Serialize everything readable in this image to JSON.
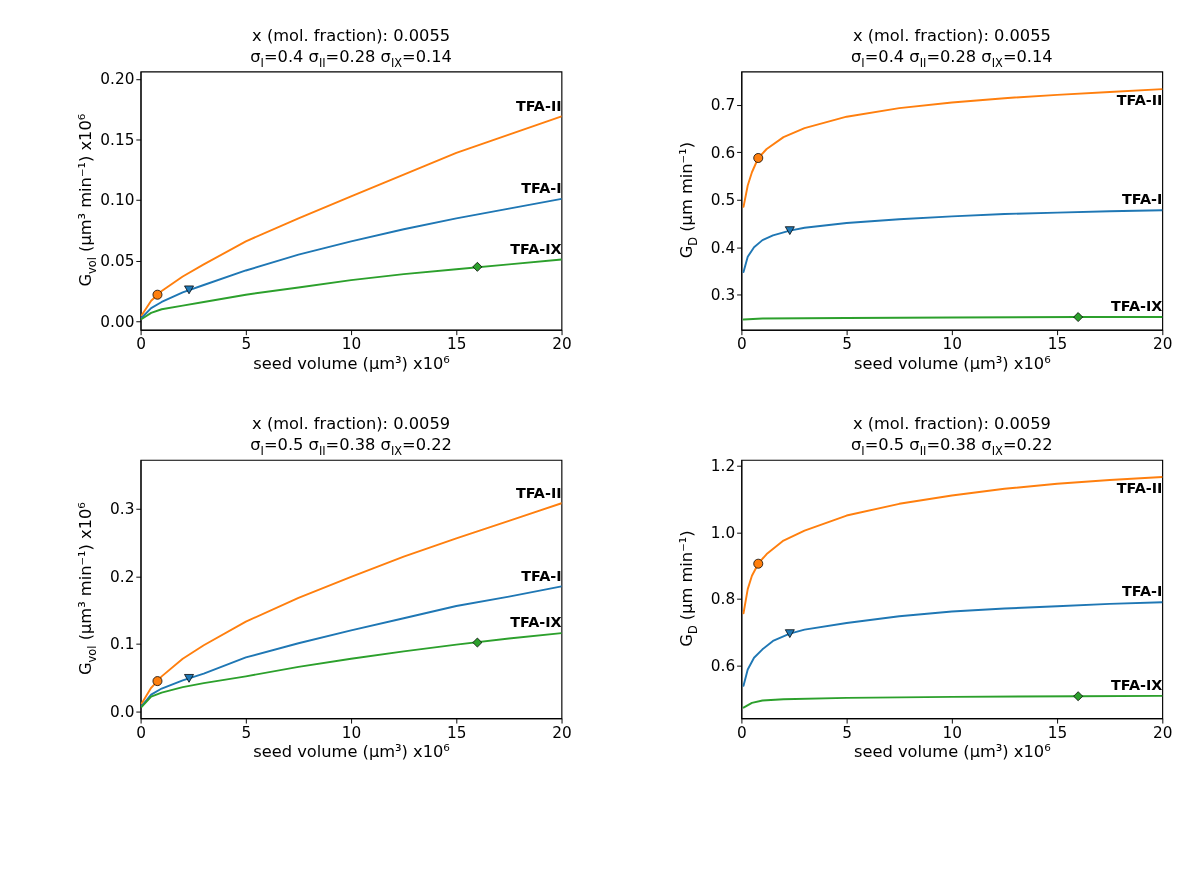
{
  "chart_data": [
    {
      "type": "line",
      "title": "x (mol. fraction): 0.0055",
      "subtitle": "σ$_{I}$=0.4 σ$_{II}$=0.28 σ$_{IX}$=0.14",
      "xlabel": "seed volume (µm³) x10⁶",
      "ylabel": "G$_{vol}$ (µm³ min⁻¹) x10⁶",
      "xlim": [
        0,
        20
      ],
      "xticks": [
        0,
        5,
        10,
        15,
        20
      ],
      "ylim": [
        -0.007,
        0.206
      ],
      "line_style": "solid",
      "yticks": [
        {
          "value": 0,
          "label": "0.00"
        },
        {
          "value": 0.05,
          "label": "0.05"
        },
        {
          "value": 0.1,
          "label": "0.10"
        },
        {
          "value": 0.15,
          "label": "0.15"
        },
        {
          "value": 0.2,
          "label": "0.20"
        }
      ],
      "grid": false,
      "series": [
        {
          "name": "TFA-II",
          "color": "#ff7f0e",
          "x": [
            0.05,
            0.5,
            1,
            2,
            3,
            5,
            7.5,
            10,
            12.5,
            15,
            17.5,
            20
          ],
          "values": [
            0.005,
            0.017,
            0.025,
            0.037,
            0.047,
            0.066,
            0.085,
            0.103,
            0.121,
            0.139,
            0.154,
            0.169
          ]
        },
        {
          "name": "TFA-I",
          "color": "#1f77b4",
          "x": [
            0.05,
            0.5,
            1,
            2,
            3,
            5,
            7.5,
            10,
            12.5,
            15,
            17.5,
            20
          ],
          "values": [
            0.003,
            0.011,
            0.016,
            0.024,
            0.03,
            0.042,
            0.055,
            0.066,
            0.076,
            0.085,
            0.093,
            0.101
          ]
        },
        {
          "name": "TFA-IX",
          "color": "#2ca02c",
          "x": [
            0.05,
            0.5,
            1,
            2,
            3,
            5,
            7.5,
            10,
            12.5,
            15,
            17.5,
            20
          ],
          "values": [
            0.002,
            0.007,
            0.01,
            0.013,
            0.016,
            0.022,
            0.028,
            0.034,
            0.039,
            0.043,
            0.047,
            0.051
          ]
        },
        {
          "type": "scatter",
          "marker": "circle",
          "color": "#ff7f0e",
          "x": [
            0.8
          ],
          "values": [
            0.022
          ]
        },
        {
          "type": "scatter",
          "marker": "triangle",
          "color": "#1f77b4",
          "x": [
            2.3
          ],
          "values": [
            0.026
          ]
        },
        {
          "type": "scatter",
          "marker": "diamond",
          "color": "#2ca02c",
          "x": [
            16
          ],
          "values": [
            0.045
          ]
        }
      ]
    },
    {
      "type": "line",
      "title": "x (mol. fraction): 0.0055",
      "subtitle": "σ$_{I}$=0.4 σ$_{II}$=0.28 σ$_{IX}$=0.14",
      "xlabel": "seed volume (µm³) x10⁶",
      "ylabel": "G$_{D}$ (µm min⁻¹)",
      "xlim": [
        0,
        20
      ],
      "xticks": [
        0,
        5,
        10,
        15,
        20
      ],
      "ylim": [
        0.226,
        0.77
      ],
      "line_style": "solid",
      "yticks": [
        0.3,
        0.4,
        0.5,
        0.6,
        0.7
      ],
      "grid": false,
      "series": [
        {
          "name": "TFA-II",
          "color": "#ff7f0e",
          "x": [
            0.1,
            0.3,
            0.5,
            0.8,
            1.2,
            2,
            3,
            5,
            7.5,
            10,
            12.5,
            15,
            17.5,
            20
          ],
          "values": [
            0.485,
            0.53,
            0.558,
            0.588,
            0.607,
            0.632,
            0.651,
            0.675,
            0.693,
            0.705,
            0.714,
            0.721,
            0.727,
            0.733
          ]
        },
        {
          "name": "TFA-I",
          "color": "#1f77b4",
          "x": [
            0.1,
            0.3,
            0.6,
            1,
            1.5,
            2.3,
            3,
            5,
            7.5,
            10,
            12.5,
            15,
            17.5,
            20
          ],
          "values": [
            0.348,
            0.38,
            0.4,
            0.415,
            0.425,
            0.435,
            0.441,
            0.451,
            0.459,
            0.465,
            0.47,
            0.473,
            0.476,
            0.478
          ]
        },
        {
          "name": "TFA-IX",
          "color": "#2ca02c",
          "x": [
            0.1,
            1,
            5,
            10,
            16,
            20
          ],
          "values": [
            0.248,
            0.25,
            0.251,
            0.252,
            0.253,
            0.253
          ]
        },
        {
          "type": "scatter",
          "marker": "circle",
          "color": "#ff7f0e",
          "x": [
            0.8
          ],
          "values": [
            0.588
          ]
        },
        {
          "type": "scatter",
          "marker": "triangle",
          "color": "#1f77b4",
          "x": [
            2.3
          ],
          "values": [
            0.435
          ]
        },
        {
          "type": "scatter",
          "marker": "diamond",
          "color": "#2ca02c",
          "x": [
            16
          ],
          "values": [
            0.253
          ]
        }
      ]
    },
    {
      "type": "line",
      "title": "x (mol. fraction): 0.0059",
      "subtitle": "σ$_{I}$=0.5 σ$_{II}$=0.38 σ$_{IX}$=0.22",
      "xlabel": "seed volume (µm³) x10⁶",
      "ylabel": "G$_{vol}$ (µm³ min⁻¹) x10⁶",
      "xlim": [
        0,
        20
      ],
      "xticks": [
        0,
        5,
        10,
        15,
        20
      ],
      "ylim": [
        -0.01,
        0.372
      ],
      "line_style": "solid",
      "yticks": [
        {
          "value": 0,
          "label": "0.0"
        },
        {
          "value": 0.1,
          "label": "0.1"
        },
        {
          "value": 0.2,
          "label": "0.2"
        },
        {
          "value": 0.3,
          "label": "0.3"
        }
      ],
      "grid": false,
      "series": [
        {
          "name": "TFA-II",
          "color": "#ff7f0e",
          "x": [
            0.05,
            0.5,
            0.8,
            1,
            2,
            3,
            5,
            7.5,
            10,
            12.5,
            15,
            17.5,
            20
          ],
          "values": [
            0.012,
            0.035,
            0.045,
            0.052,
            0.078,
            0.098,
            0.133,
            0.168,
            0.199,
            0.229,
            0.256,
            0.282,
            0.308
          ]
        },
        {
          "name": "TFA-I",
          "color": "#1f77b4",
          "x": [
            0.05,
            0.5,
            1,
            2,
            3,
            5,
            7.5,
            10,
            12.5,
            15,
            17.5,
            20
          ],
          "values": [
            0.008,
            0.025,
            0.034,
            0.046,
            0.056,
            0.08,
            0.101,
            0.12,
            0.138,
            0.156,
            0.17,
            0.185
          ]
        },
        {
          "name": "TFA-IX",
          "color": "#2ca02c",
          "x": [
            0.05,
            0.5,
            1,
            2,
            3,
            5,
            7.5,
            10,
            12.5,
            15,
            17.5,
            20
          ],
          "values": [
            0.007,
            0.022,
            0.028,
            0.036,
            0.042,
            0.052,
            0.066,
            0.078,
            0.089,
            0.099,
            0.108,
            0.116
          ]
        },
        {
          "type": "scatter",
          "marker": "circle",
          "color": "#ff7f0e",
          "x": [
            0.8
          ],
          "values": [
            0.045
          ]
        },
        {
          "type": "scatter",
          "marker": "triangle",
          "color": "#1f77b4",
          "x": [
            2.3
          ],
          "values": [
            0.049
          ]
        },
        {
          "type": "scatter",
          "marker": "diamond",
          "color": "#2ca02c",
          "x": [
            16
          ],
          "values": [
            0.102
          ]
        }
      ]
    },
    {
      "type": "line",
      "title": "x (mol. fraction): 0.0059",
      "subtitle": "σ$_{I}$=0.5 σ$_{II}$=0.38 σ$_{IX}$=0.22",
      "xlabel": "seed volume (µm³) x10⁶",
      "ylabel": "G$_{D}$ (µm min⁻¹)",
      "xlim": [
        0,
        20
      ],
      "xticks": [
        0,
        5,
        10,
        15,
        20
      ],
      "ylim": [
        0.444,
        1.216
      ],
      "line_style": "solid",
      "yticks": [
        {
          "value": 0.6,
          "label": "0.6"
        },
        {
          "value": 0.8,
          "label": "0.8"
        },
        {
          "value": 1,
          "label": "1.0"
        },
        {
          "value": 1.2,
          "label": "1.2"
        }
      ],
      "grid": false,
      "series": [
        {
          "name": "TFA-II",
          "color": "#ff7f0e",
          "x": [
            0.1,
            0.3,
            0.5,
            0.8,
            1.2,
            2,
            3,
            5,
            7.5,
            10,
            12.5,
            15,
            17.5,
            20
          ],
          "values": [
            0.758,
            0.83,
            0.87,
            0.906,
            0.935,
            0.975,
            1.005,
            1.05,
            1.085,
            1.11,
            1.13,
            1.145,
            1.156,
            1.165
          ]
        },
        {
          "name": "TFA-I",
          "color": "#1f77b4",
          "x": [
            0.1,
            0.3,
            0.6,
            1,
            1.5,
            2.3,
            3,
            5,
            7.5,
            10,
            12.5,
            15,
            17.5,
            20
          ],
          "values": [
            0.541,
            0.59,
            0.625,
            0.65,
            0.675,
            0.697,
            0.709,
            0.729,
            0.749,
            0.763,
            0.772,
            0.779,
            0.786,
            0.791
          ]
        },
        {
          "name": "TFA-IX",
          "color": "#2ca02c",
          "x": [
            0.1,
            0.5,
            1,
            2,
            5,
            10,
            16,
            20
          ],
          "values": [
            0.476,
            0.49,
            0.497,
            0.501,
            0.505,
            0.508,
            0.51,
            0.511
          ]
        },
        {
          "type": "scatter",
          "marker": "circle",
          "color": "#ff7f0e",
          "x": [
            0.8
          ],
          "values": [
            0.906
          ]
        },
        {
          "type": "scatter",
          "marker": "triangle",
          "color": "#1f77b4",
          "x": [
            2.3
          ],
          "values": [
            0.697
          ]
        },
        {
          "type": "scatter",
          "marker": "diamond",
          "color": "#2ca02c",
          "x": [
            16
          ],
          "values": [
            0.51
          ]
        }
      ]
    }
  ]
}
